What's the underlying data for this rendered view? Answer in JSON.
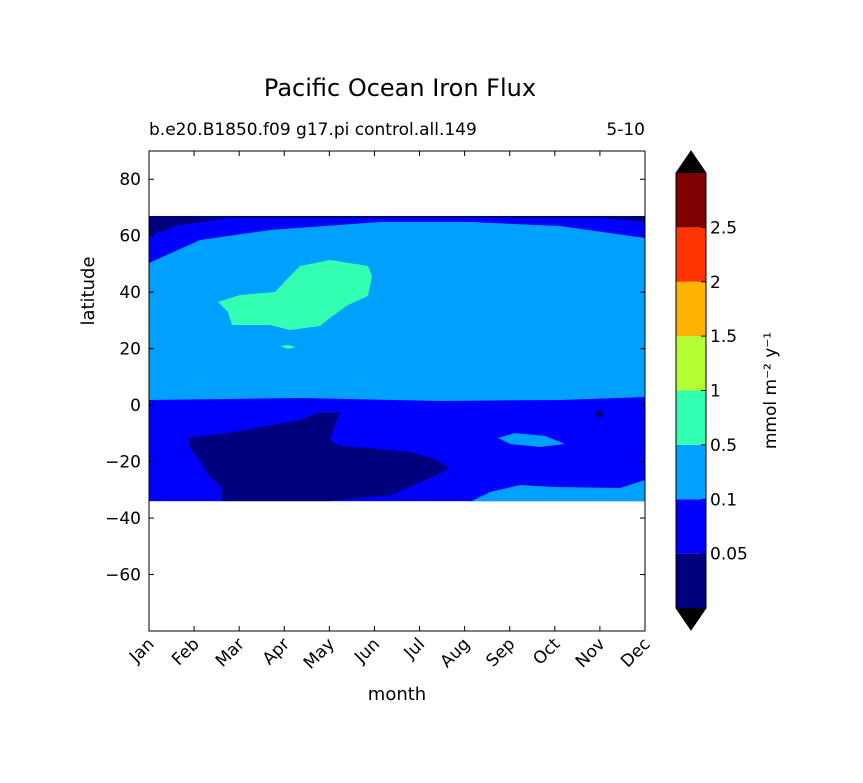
{
  "title": "Pacific Ocean Iron Flux",
  "subtitle_left": "b.e20.B1850.f09 g17.pi control.all.149",
  "subtitle_right": "5-10",
  "chart_data": {
    "type": "heatmap",
    "title": "Pacific Ocean Iron Flux",
    "xlabel": "month",
    "ylabel": "latitude",
    "x_ticks": [
      "Jan",
      "Feb",
      "Mar",
      "Apr",
      "May",
      "Jun",
      "Jul",
      "Aug",
      "Sep",
      "Oct",
      "Nov",
      "Dec"
    ],
    "y_ticks": [
      80,
      60,
      40,
      20,
      0,
      -20,
      -40,
      -60
    ],
    "y_tick_labels": [
      "80",
      "60",
      "40",
      "20",
      "0",
      "−20",
      "−40",
      "−60"
    ],
    "ylim": [
      -80,
      90
    ],
    "data_lat_range": [
      -34,
      67
    ],
    "colorbar": {
      "label": "mmol m⁻² y⁻¹",
      "levels": [
        0.05,
        0.1,
        0.5,
        1,
        1.5,
        2,
        2.5
      ],
      "tick_labels": [
        "0.05",
        "0.1",
        "0.5",
        "1",
        "1.5",
        "2",
        "2.5"
      ],
      "colors": [
        "#00007f",
        "#0000ff",
        "#00a0ff",
        "#33ffb3",
        "#b3ff33",
        "#ffb300",
        "#ff3300",
        "#7f0000"
      ],
      "extend": "both",
      "extend_color": "#000000"
    },
    "regions": [
      {
        "level": "0.1–0.5",
        "description": "dominant band 3–67 latitude, all months"
      },
      {
        "level": "0.5–1",
        "description": "patch Mar–Jun, latitude ~27–52"
      },
      {
        "level": "0.05–0.1",
        "description": "band -34 to 3 latitude; north edge 50–67"
      },
      {
        "level": "<0.05",
        "description": "Feb–Aug, latitude -34 to -9; top edge 65–67"
      }
    ]
  }
}
